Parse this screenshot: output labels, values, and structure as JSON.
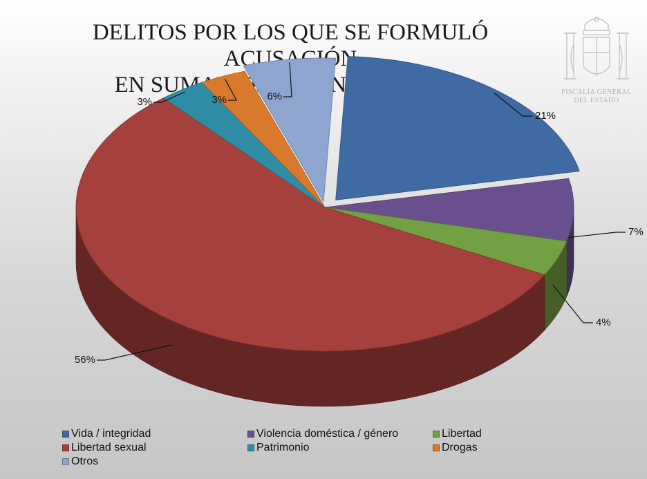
{
  "title_lines": [
    "DELITOS POR LOS QUE SE FORMULÓ ACUSACIÓN",
    "EN SUMARIOS ORDINARIOS 2024"
  ],
  "emblem": {
    "text_lines": [
      "FISCALÍA GENERAL",
      "DEL ESTADO"
    ],
    "icon": "coat-of-arms"
  },
  "chart_data": {
    "type": "pie",
    "title": "DELITOS POR LOS QUE SE FORMULÓ ACUSACIÓN EN SUMARIOS ORDINARIOS 2024",
    "three_d": true,
    "legend_position": "bottom",
    "slices": [
      {
        "label": "Vida / integridad",
        "value": 21,
        "display": "21%",
        "color": "#3f6aa3"
      },
      {
        "label": "Violencia doméstica / género",
        "value": 7,
        "display": "7%",
        "color": "#6a4f8f"
      },
      {
        "label": "Libertad",
        "value": 4,
        "display": "4%",
        "color": "#72a042"
      },
      {
        "label": "Libertad sexual",
        "value": 56,
        "display": "56%",
        "color": "#a5403d"
      },
      {
        "label": "Patrimonio",
        "value": 3,
        "display": "3%",
        "color": "#2f8ea6"
      },
      {
        "label": "Drogas",
        "value": 3,
        "display": "3%",
        "color": "#d8792c"
      },
      {
        "label": "Otros",
        "value": 6,
        "display": "6%",
        "color": "#8ea6cf"
      }
    ]
  }
}
